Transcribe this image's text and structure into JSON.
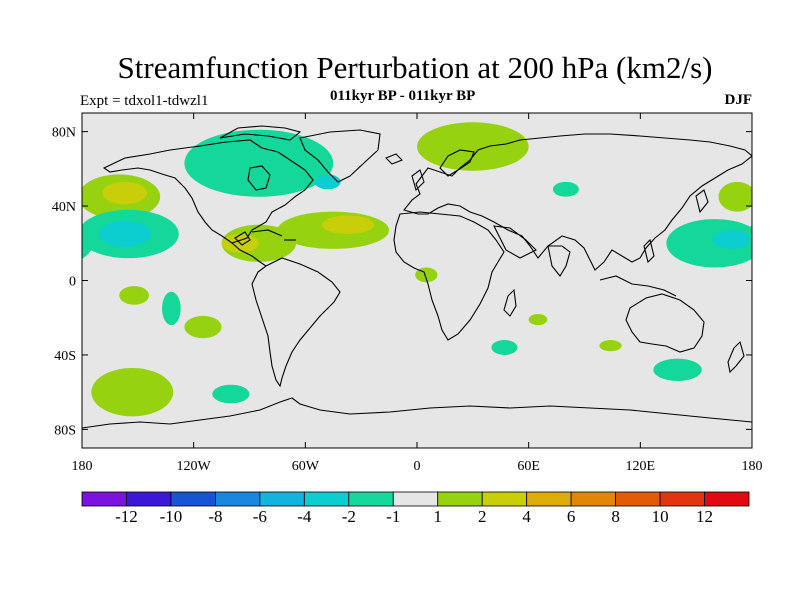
{
  "title": "Streamfunction Perturbation at 200 hPa (km2/s)",
  "experiment_label": "Expt = tdxol1-tdwzl1",
  "period_label": "011kyr BP - 011kyr BP",
  "season_label": "DJF",
  "chart_data": {
    "type": "heatmap",
    "title": "Streamfunction Perturbation at 200 hPa (km2/s)",
    "subtitle": "011kyr BP - 011kyr BP",
    "projection": "cylindrical-equidistant",
    "xlim": [
      -180,
      180
    ],
    "ylim": [
      -90,
      90
    ],
    "x_ticks": [
      {
        "value": -180,
        "label": "180"
      },
      {
        "value": -120,
        "label": "120W"
      },
      {
        "value": -60,
        "label": "60W"
      },
      {
        "value": 0,
        "label": "0"
      },
      {
        "value": 60,
        "label": "60E"
      },
      {
        "value": 120,
        "label": "120E"
      },
      {
        "value": 180,
        "label": "180"
      }
    ],
    "y_ticks": [
      {
        "value": 80,
        "label": "80N"
      },
      {
        "value": 40,
        "label": "40N"
      },
      {
        "value": 0,
        "label": "0"
      },
      {
        "value": -40,
        "label": "40S"
      },
      {
        "value": -80,
        "label": "80S"
      }
    ],
    "colorbar": {
      "labels": [
        "-12",
        "-10",
        "-8",
        "-6",
        "-4",
        "-2",
        "-1",
        "1",
        "2",
        "4",
        "6",
        "8",
        "10",
        "12"
      ],
      "colors": [
        "#7b12e0",
        "#3b18d8",
        "#1654d3",
        "#1a86dc",
        "#10b4dc",
        "#0ccdd0",
        "#14d79a",
        "#e6e6e6",
        "#96d210",
        "#c8cf08",
        "#dcac08",
        "#e08806",
        "#e05c08",
        "#e23410",
        "#e00a10"
      ]
    },
    "background_color": "#e6e6e6",
    "regions": [
      {
        "name": "north-pacific-positive",
        "lon": -160,
        "lat": 45,
        "rlon": 22,
        "rlat": 12,
        "level": 2
      },
      {
        "name": "north-pacific-core",
        "lon": -157,
        "lat": 47,
        "rlon": 12,
        "rlat": 6,
        "level": 4
      },
      {
        "name": "subtropical-pacific-negative",
        "lon": -155,
        "lat": 25,
        "rlon": 27,
        "rlat": 13,
        "level": -2
      },
      {
        "name": "subtropical-pacific-core",
        "lon": -157,
        "lat": 25,
        "rlon": 14,
        "rlat": 7,
        "level": -4
      },
      {
        "name": "canada-greenland-negative",
        "lon": -85,
        "lat": 63,
        "rlon": 40,
        "rlat": 18,
        "level": -2
      },
      {
        "name": "newfoundland-core",
        "lon": -48,
        "lat": 53,
        "rlon": 7,
        "rlat": 4,
        "level": -4
      },
      {
        "name": "caribbean-positive",
        "lon": -85,
        "lat": 20,
        "rlon": 20,
        "rlat": 10,
        "level": 2
      },
      {
        "name": "caribbean-core",
        "lon": -95,
        "lat": 20,
        "rlon": 10,
        "rlat": 5,
        "level": 4
      },
      {
        "name": "north-atlantic-positive",
        "lon": -45,
        "lat": 27,
        "rlon": 30,
        "rlat": 10,
        "level": 2
      },
      {
        "name": "north-atlantic-core",
        "lon": -37,
        "lat": 30,
        "rlon": 14,
        "rlat": 5,
        "level": 4
      },
      {
        "name": "arctic-europe-positive",
        "lon": 30,
        "lat": 72,
        "rlon": 30,
        "rlat": 13,
        "level": 2
      },
      {
        "name": "west-africa-positive",
        "lon": 5,
        "lat": 3,
        "rlon": 6,
        "rlat": 4,
        "level": 2
      },
      {
        "name": "central-asia-negative",
        "lon": 80,
        "lat": 49,
        "rlon": 7,
        "rlat": 4,
        "level": -2
      },
      {
        "name": "west-pacific-negative",
        "lon": 160,
        "lat": 20,
        "rlon": 26,
        "rlat": 13,
        "level": -2
      },
      {
        "name": "west-pacific-core",
        "lon": 169,
        "lat": 22,
        "rlon": 10,
        "rlat": 5,
        "level": -4
      },
      {
        "name": "dateline-north-positive",
        "lon": 172,
        "lat": 45,
        "rlon": 10,
        "rlat": 8,
        "level": 2
      },
      {
        "name": "south-pacific-positive-1",
        "lon": -152,
        "lat": -8,
        "rlon": 8,
        "rlat": 5,
        "level": 2
      },
      {
        "name": "south-pacific-negative-1",
        "lon": -132,
        "lat": -15,
        "rlon": 5,
        "rlat": 9,
        "level": -2
      },
      {
        "name": "south-pacific-positive-2",
        "lon": -115,
        "lat": -25,
        "rlon": 10,
        "rlat": 6,
        "level": 2
      },
      {
        "name": "south-pacific-positive-3",
        "lon": -153,
        "lat": -60,
        "rlon": 22,
        "rlat": 13,
        "level": 2
      },
      {
        "name": "southern-ocean-negative",
        "lon": -100,
        "lat": -61,
        "rlon": 10,
        "rlat": 5,
        "level": -2
      },
      {
        "name": "south-africa-negative",
        "lon": 47,
        "lat": -36,
        "rlon": 7,
        "rlat": 4,
        "level": -2
      },
      {
        "name": "indian-ocean-positive-1",
        "lon": 65,
        "lat": -21,
        "rlon": 5,
        "rlat": 3,
        "level": 2
      },
      {
        "name": "indian-ocean-positive-2",
        "lon": 104,
        "lat": -35,
        "rlon": 6,
        "rlat": 3,
        "level": 2
      },
      {
        "name": "south-indian-negative",
        "lon": 140,
        "lat": -48,
        "rlon": 13,
        "rlat": 6,
        "level": -2
      }
    ]
  }
}
